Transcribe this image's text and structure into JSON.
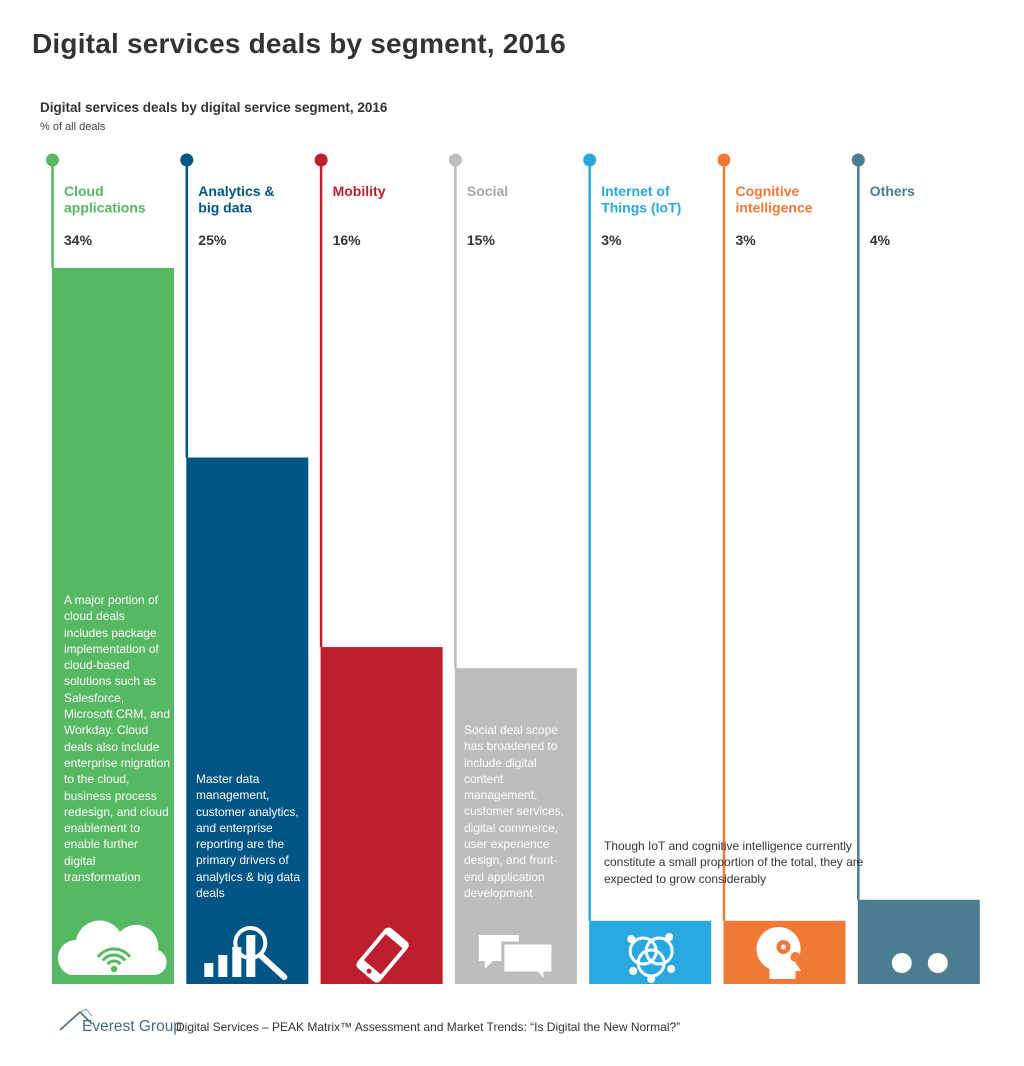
{
  "page_title": "Digital services deals by segment, 2016",
  "chart_data": {
    "type": "bar",
    "title": "Digital services deals by digital service segment, 2016",
    "subtitle": "% of all deals",
    "xlabel": "",
    "ylabel": "% of all deals",
    "ylim": [
      0,
      34
    ],
    "series": [
      {
        "name": "Cloud applications",
        "label_lines": [
          "Cloud",
          "applications"
        ],
        "value": 34,
        "value_label": "34%",
        "color": "#56b862",
        "icon": "cloud-wifi-icon"
      },
      {
        "name": "Analytics & big data",
        "label_lines": [
          "Analytics &",
          "big data"
        ],
        "value": 25,
        "value_label": "25%",
        "color": "#005587",
        "icon": "analytics-magnifier-icon"
      },
      {
        "name": "Mobility",
        "label_lines": [
          "Mobility"
        ],
        "value": 16,
        "value_label": "16%",
        "color": "#bd1f2e",
        "icon": "mobile-phone-icon"
      },
      {
        "name": "Social",
        "label_lines": [
          "Social"
        ],
        "value": 15,
        "value_label": "15%",
        "color": "#bdbdbd",
        "label_color": "#a6a6a6",
        "icon": "chat-bubbles-icon"
      },
      {
        "name": "Internet of Things (IoT)",
        "label_lines": [
          "Internet of",
          "Things (IoT)"
        ],
        "value": 3,
        "value_label": "3%",
        "color": "#29a8e0",
        "icon": "network-nodes-icon"
      },
      {
        "name": "Cognitive intelligence",
        "label_lines": [
          "Cognitive",
          "intelligence"
        ],
        "value": 3,
        "value_label": "3%",
        "color": "#f07936",
        "icon": "brain-gears-icon"
      },
      {
        "name": "Others",
        "label_lines": [
          "Others"
        ],
        "value": 4,
        "value_label": "4%",
        "color": "#4b7c8f",
        "icon": "dots-icon"
      }
    ]
  },
  "notes": {
    "cloud": "A major portion of cloud deals includes package implementation of cloud-based solutions such as Salesforce, Microsoft CRM, and Workday. Cloud deals also include enterprise migration to the cloud, business process redesign, and cloud enablement to enable further digital transformation",
    "analytics": "Master data management, customer analytics, and enterprise reporting are the primary drivers of analytics & big data deals",
    "social": "Social deal scope has broadened to include digital content management, customer services, digital commerce, user experience design, and front-end application development",
    "iot_cognitive": "Though IoT and cognitive intelligence currently constitute a small proportion of the total, they are expected to grow considerably"
  },
  "footer": {
    "brand": "Everest Group",
    "source": "Digital Services – PEAK Matrix™ Assessment and Market Trends: “Is Digital the New Normal?”"
  }
}
